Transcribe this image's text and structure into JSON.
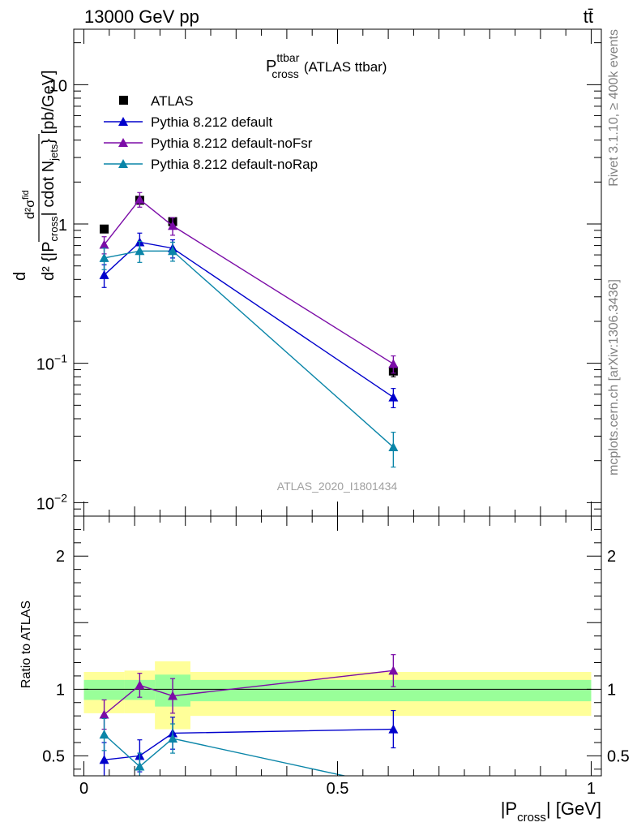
{
  "header": {
    "energy": "13000 GeV pp",
    "process": "tt̄"
  },
  "side_labels": {
    "rivet": "Rivet 3.1.10, ≥ 400k events",
    "mcplots": "mcplots.cern.ch [arXiv:1306.3436]"
  },
  "chart_data": [
    {
      "type": "scatter",
      "panel": "main",
      "title": "P_cross^ttbar (ATLAS ttbar)",
      "title_main": "P",
      "title_sup": "ttbar",
      "title_sub": "cross",
      "title_rest": "(ATLAS ttbar)",
      "watermark": "ATLAS_2020_I1801434",
      "ylabel": "d²σ^fid / d²{|P_cross| cdot N_jets} [pb/GeV]",
      "yscale": "log",
      "ylim": [
        0.008,
        25
      ],
      "xlim": [
        -0.02,
        1.02
      ],
      "ytick_labels": [
        {
          "value": 10,
          "base": "10",
          "exp": ""
        },
        {
          "value": 1,
          "base": "1",
          "exp": ""
        },
        {
          "value": 0.1,
          "base": "10",
          "exp": "−1"
        },
        {
          "value": 0.01,
          "base": "10",
          "exp": "−2"
        }
      ],
      "legend_position": "top-left",
      "series": [
        {
          "name": "ATLAS",
          "marker": "square",
          "color": "#000000",
          "x": [
            0.04,
            0.11,
            0.175,
            0.61
          ],
          "y": [
            0.92,
            1.48,
            1.04,
            0.088
          ],
          "yerr": [
            0.05,
            0.08,
            0.06,
            0.008
          ]
        },
        {
          "name": "Pythia 8.212 default",
          "marker": "triangle",
          "color": "#0000cc",
          "x": [
            0.04,
            0.11,
            0.175,
            0.61
          ],
          "y": [
            0.43,
            0.74,
            0.67,
            0.057
          ],
          "yerr": [
            0.08,
            0.12,
            0.1,
            0.009
          ]
        },
        {
          "name": "Pythia 8.212 default-noFsr",
          "marker": "triangle",
          "color": "#7b0ca7",
          "x": [
            0.04,
            0.11,
            0.175,
            0.61
          ],
          "y": [
            0.71,
            1.5,
            0.97,
            0.099
          ],
          "yerr": [
            0.1,
            0.18,
            0.14,
            0.014
          ]
        },
        {
          "name": "Pythia 8.212 default-noRap",
          "marker": "triangle",
          "color": "#0a85a8",
          "x": [
            0.04,
            0.11,
            0.175,
            0.61
          ],
          "y": [
            0.57,
            0.64,
            0.64,
            0.025
          ],
          "yerr": [
            0.1,
            0.11,
            0.1,
            0.007
          ]
        }
      ]
    },
    {
      "type": "scatter",
      "panel": "ratio",
      "ylabel": "Ratio to ATLAS",
      "xlabel": "|P_cross| [GeV]",
      "xlabel_main_pre": "|P",
      "xlabel_sub": "cross",
      "xlabel_main_post": "| [GeV]",
      "ylim": [
        0.35,
        2.3
      ],
      "xlim": [
        -0.02,
        1.02
      ],
      "yticks": [
        0.5,
        1,
        2
      ],
      "ytick_labels": [
        "0.5",
        "1",
        "2"
      ],
      "xticks": [
        0,
        0.5,
        1
      ],
      "xtick_labels": [
        "0",
        "0.5",
        "1"
      ],
      "uncertainty_bands": [
        {
          "x0": 0.0,
          "x1": 0.08,
          "inner": [
            0.92,
            1.07
          ],
          "outer": [
            0.82,
            1.13
          ]
        },
        {
          "x0": 0.08,
          "x1": 0.14,
          "inner": [
            0.92,
            1.07
          ],
          "outer": [
            0.82,
            1.14
          ]
        },
        {
          "x0": 0.14,
          "x1": 0.21,
          "inner": [
            0.87,
            1.11
          ],
          "outer": [
            0.7,
            1.21
          ]
        },
        {
          "x0": 0.21,
          "x1": 1.0,
          "inner": [
            0.91,
            1.07
          ],
          "outer": [
            0.8,
            1.13
          ]
        }
      ],
      "series": [
        {
          "name": "Pythia 8.212 default",
          "color": "#0000cc",
          "x": [
            0.04,
            0.11,
            0.175,
            0.61
          ],
          "y": [
            0.47,
            0.5,
            0.67,
            0.7
          ],
          "yerr": [
            0.13,
            0.12,
            0.12,
            0.14
          ]
        },
        {
          "name": "Pythia 8.212 default-noFsr",
          "color": "#7b0ca7",
          "x": [
            0.04,
            0.11,
            0.175,
            0.61
          ],
          "y": [
            0.81,
            1.03,
            0.95,
            1.14
          ],
          "yerr": [
            0.11,
            0.09,
            0.13,
            0.12
          ]
        },
        {
          "name": "Pythia 8.212 default-noRap",
          "color": "#0a85a8",
          "x": [
            0.04,
            0.11,
            0.175,
            0.61
          ],
          "y": [
            0.66,
            0.42,
            0.63,
            0.27
          ],
          "yerr": [
            0.12,
            0.1,
            0.11,
            0.06
          ]
        }
      ]
    }
  ]
}
